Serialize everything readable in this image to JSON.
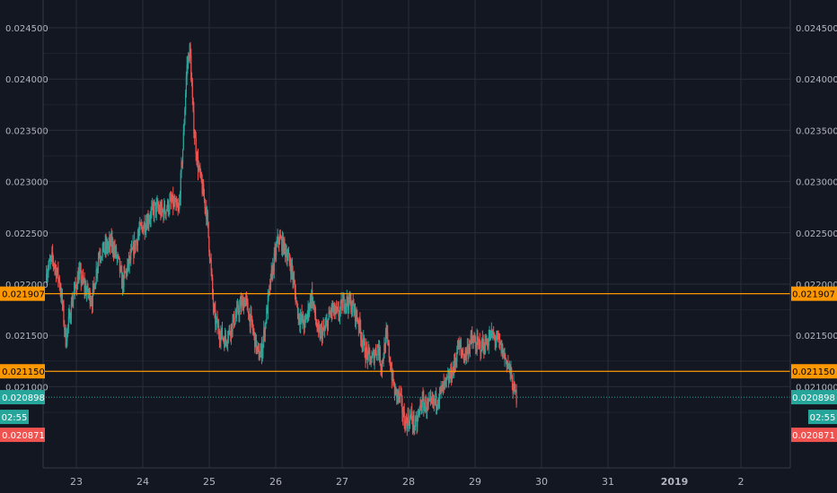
{
  "chart_data": {
    "type": "candlestick",
    "x_ticks": [
      "23",
      "24",
      "25",
      "26",
      "27",
      "28",
      "29",
      "30",
      "31",
      "2019",
      "2"
    ],
    "x_ticks_bold": [
      "2019"
    ],
    "y_ticks": [
      "0.024500",
      "0.024000",
      "0.023500",
      "0.023000",
      "0.022500",
      "0.022000",
      "0.021500",
      "0.021000"
    ],
    "ylim": [
      0.02045,
      0.02483
    ],
    "xlim_days": [
      22.55,
      30.45
    ],
    "price_lines": [
      {
        "value": 0.021907,
        "label": "0.021907",
        "color": "#ff9800"
      },
      {
        "value": 0.02115,
        "label": "0.021150",
        "color": "#ff9800"
      }
    ],
    "current_price": {
      "value": 0.020898,
      "label": "0.020898",
      "color": "#26a69a",
      "countdown": "02:55"
    },
    "low_marker": {
      "value": 0.020871,
      "label": "0.020871",
      "color": "#ef5350"
    },
    "series_close_path": [
      [
        22.55,
        0.0221
      ],
      [
        22.65,
        0.02225
      ],
      [
        22.75,
        0.02205
      ],
      [
        22.8,
        0.0218
      ],
      [
        22.85,
        0.02145
      ],
      [
        22.95,
        0.02185
      ],
      [
        23.05,
        0.0221
      ],
      [
        23.15,
        0.02195
      ],
      [
        23.2,
        0.0219
      ],
      [
        23.25,
        0.02185
      ],
      [
        23.35,
        0.0223
      ],
      [
        23.45,
        0.02235
      ],
      [
        23.55,
        0.0224
      ],
      [
        23.65,
        0.0222
      ],
      [
        23.7,
        0.022
      ],
      [
        23.8,
        0.0222
      ],
      [
        23.95,
        0.0225
      ],
      [
        24.1,
        0.02265
      ],
      [
        24.2,
        0.02275
      ],
      [
        24.3,
        0.0227
      ],
      [
        24.45,
        0.0228
      ],
      [
        24.55,
        0.0227
      ],
      [
        24.62,
        0.0234
      ],
      [
        24.67,
        0.0241
      ],
      [
        24.72,
        0.0243
      ],
      [
        24.77,
        0.0236
      ],
      [
        24.83,
        0.0232
      ],
      [
        24.9,
        0.02295
      ],
      [
        24.97,
        0.0227
      ],
      [
        25.03,
        0.0222
      ],
      [
        25.08,
        0.0217
      ],
      [
        25.15,
        0.02155
      ],
      [
        25.25,
        0.02145
      ],
      [
        25.35,
        0.0216
      ],
      [
        25.45,
        0.02175
      ],
      [
        25.55,
        0.02185
      ],
      [
        25.65,
        0.0216
      ],
      [
        25.75,
        0.0213
      ],
      [
        25.8,
        0.02135
      ],
      [
        25.85,
        0.0216
      ],
      [
        25.95,
        0.0221
      ],
      [
        26.05,
        0.02245
      ],
      [
        26.15,
        0.02235
      ],
      [
        26.25,
        0.02215
      ],
      [
        26.35,
        0.0217
      ],
      [
        26.45,
        0.0216
      ],
      [
        26.55,
        0.0219
      ],
      [
        26.65,
        0.0215
      ],
      [
        26.75,
        0.02155
      ],
      [
        26.85,
        0.02175
      ],
      [
        26.95,
        0.0217
      ],
      [
        27.05,
        0.02185
      ],
      [
        27.15,
        0.0218
      ],
      [
        27.25,
        0.02165
      ],
      [
        27.35,
        0.02135
      ],
      [
        27.45,
        0.02125
      ],
      [
        27.55,
        0.0214
      ],
      [
        27.6,
        0.0212
      ],
      [
        27.68,
        0.0215
      ],
      [
        27.75,
        0.02115
      ],
      [
        27.8,
        0.02095
      ],
      [
        27.88,
        0.0209
      ],
      [
        27.95,
        0.02065
      ],
      [
        28.05,
        0.0207
      ],
      [
        28.12,
        0.0206
      ],
      [
        28.2,
        0.02085
      ],
      [
        28.3,
        0.0208
      ],
      [
        28.4,
        0.02085
      ],
      [
        28.5,
        0.02095
      ],
      [
        28.6,
        0.02105
      ],
      [
        28.7,
        0.0212
      ],
      [
        28.75,
        0.0214
      ],
      [
        28.85,
        0.0213
      ],
      [
        28.95,
        0.02145
      ],
      [
        29.05,
        0.0214
      ],
      [
        29.15,
        0.0214
      ],
      [
        29.25,
        0.0215
      ],
      [
        29.35,
        0.02145
      ],
      [
        29.45,
        0.0213
      ],
      [
        29.52,
        0.0212
      ],
      [
        29.58,
        0.021
      ],
      [
        29.63,
        0.0209
      ]
    ]
  }
}
